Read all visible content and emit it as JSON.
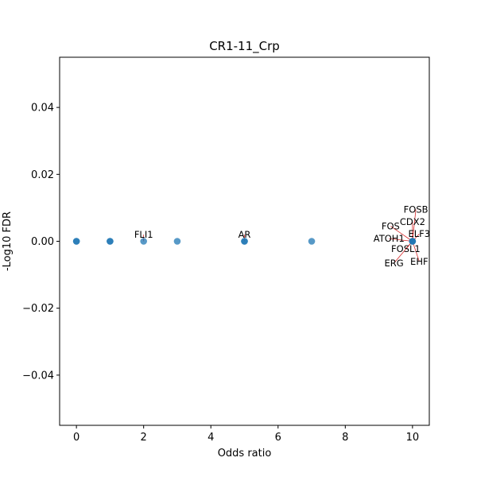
{
  "chart_data": {
    "type": "scatter",
    "title": "CR1-11_Crp",
    "xlabel": "Odds ratio",
    "ylabel": "-Log10 FDR",
    "xlim": [
      -0.5,
      10.5
    ],
    "ylim": [
      -0.055,
      0.055
    ],
    "xticks": [
      0,
      2,
      4,
      6,
      8,
      10
    ],
    "yticks": [
      -0.04,
      -0.02,
      0.0,
      0.02,
      0.04
    ],
    "ytick_labels": [
      "−0.04",
      "−0.02",
      "0.00",
      "0.02",
      "0.04"
    ],
    "grid": false,
    "point_color": "#1f77b4",
    "leader_line_color": "#d62728",
    "points": [
      {
        "x": 0,
        "y": 0
      },
      {
        "x": 0,
        "y": 0
      },
      {
        "x": 1,
        "y": 0
      },
      {
        "x": 1,
        "y": 0
      },
      {
        "x": 2,
        "y": 0
      },
      {
        "x": 3,
        "y": 0
      },
      {
        "x": 5,
        "y": 0
      },
      {
        "x": 5,
        "y": 0
      },
      {
        "x": 7,
        "y": 0
      },
      {
        "x": 10,
        "y": 0
      },
      {
        "x": 10,
        "y": 0
      },
      {
        "x": 10,
        "y": 0
      }
    ],
    "annotations": [
      {
        "text": "FLI1",
        "x": 2,
        "y": 0,
        "tx": 2,
        "ty": 0.002
      },
      {
        "text": "AR",
        "x": 5,
        "y": 0,
        "tx": 5,
        "ty": 0.002
      },
      {
        "text": "FOSB",
        "x": 10,
        "y": 0,
        "tx": 10.1,
        "ty": 0.0095
      },
      {
        "text": "CDX2",
        "x": 10,
        "y": 0,
        "tx": 10.0,
        "ty": 0.0058
      },
      {
        "text": "FOS",
        "x": 10,
        "y": 0,
        "tx": 9.35,
        "ty": 0.0045
      },
      {
        "text": "ELF3",
        "x": 10,
        "y": 0,
        "tx": 10.2,
        "ty": 0.0022
      },
      {
        "text": "ATOH1",
        "x": 10,
        "y": 0,
        "tx": 9.3,
        "ty": 0.0008
      },
      {
        "text": "FOSL1",
        "x": 10,
        "y": 0,
        "tx": 9.8,
        "ty": -0.0022
      },
      {
        "text": "ERG",
        "x": 10,
        "y": 0,
        "tx": 9.45,
        "ty": -0.0065
      },
      {
        "text": "EHF",
        "x": 10,
        "y": 0,
        "tx": 10.2,
        "ty": -0.006
      }
    ]
  }
}
